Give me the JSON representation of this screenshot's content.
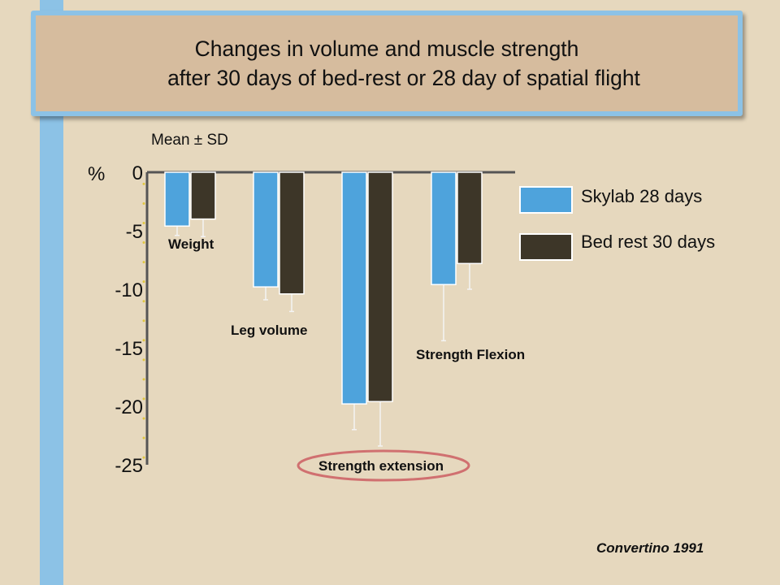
{
  "slide": {
    "title_line1": "Changes in volume and muscle strength",
    "title_line2": "after 30 days of bed-rest or 28 day of spatial flight",
    "subtitle": "Mean ± SD",
    "citation": "Convertino 1991"
  },
  "colors": {
    "background": "#e6d8be",
    "title_box": "#d6bc9e",
    "accent_blue": "#8cc2e6",
    "highlight_ellipse": "#d07070"
  },
  "chart_data": {
    "type": "bar",
    "ylabel": "%",
    "ylim": [
      -25,
      0
    ],
    "ytick_labels": [
      "0",
      "-5",
      "-10",
      "-15",
      "-20",
      "-25"
    ],
    "ytick_values": [
      0,
      -5,
      -10,
      -15,
      -20,
      -25
    ],
    "grid": false,
    "legend_position": "right",
    "categories": [
      "Weight",
      "Leg volume",
      "Strength extension",
      "Strength Flexion"
    ],
    "highlighted_category": "Strength extension",
    "series": [
      {
        "name": "Skylab 28 days",
        "color": "#4ea3dc",
        "values": [
          -4.6,
          -9.8,
          -19.8,
          -9.6
        ],
        "sd": [
          0.8,
          1.1,
          2.2,
          4.8
        ]
      },
      {
        "name": "Bed rest 30 days",
        "color": "#3d3628",
        "values": [
          -4.0,
          -10.4,
          -19.6,
          -7.8
        ],
        "sd": [
          1.5,
          1.5,
          3.8,
          2.2
        ]
      }
    ]
  }
}
